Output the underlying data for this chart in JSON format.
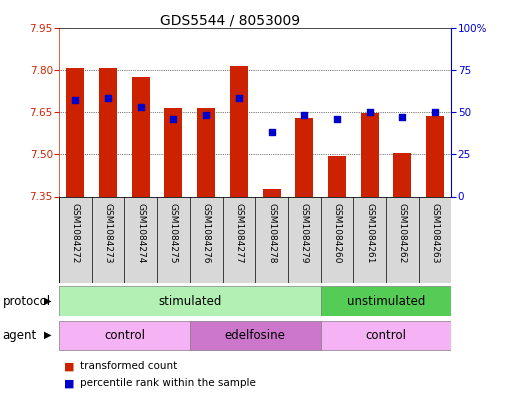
{
  "title": "GDS5544 / 8053009",
  "samples": [
    "GSM1084272",
    "GSM1084273",
    "GSM1084274",
    "GSM1084275",
    "GSM1084276",
    "GSM1084277",
    "GSM1084278",
    "GSM1084279",
    "GSM1084260",
    "GSM1084261",
    "GSM1084262",
    "GSM1084263"
  ],
  "red_values": [
    7.805,
    7.807,
    7.775,
    7.665,
    7.663,
    7.815,
    7.375,
    7.63,
    7.495,
    7.648,
    7.505,
    7.635
  ],
  "blue_values": [
    57,
    58,
    53,
    46,
    48,
    58,
    38,
    48,
    46,
    50,
    47,
    50
  ],
  "ylim_left": [
    7.35,
    7.95
  ],
  "ylim_right": [
    0,
    100
  ],
  "yticks_left": [
    7.35,
    7.5,
    7.65,
    7.8,
    7.95
  ],
  "yticks_right": [
    0,
    25,
    50,
    75,
    100
  ],
  "ytick_labels_right": [
    "0",
    "25",
    "50",
    "75",
    "100%"
  ],
  "bar_color": "#cc2200",
  "dot_color": "#0000cc",
  "bar_bottom": 7.35,
  "protocol_labels": [
    "stimulated",
    "unstimulated"
  ],
  "protocol_color_stim": "#b3f0b3",
  "protocol_color_unstim": "#55cc55",
  "agent_labels": [
    "control",
    "edelfosine",
    "control"
  ],
  "agent_color_control": "#f5b3f5",
  "agent_color_edelfosine": "#cc77cc",
  "legend_red_label": "transformed count",
  "legend_blue_label": "percentile rank within the sample",
  "background_color": "#ffffff",
  "title_fontsize": 10,
  "tick_fontsize": 7.5,
  "label_fontsize": 8.5,
  "xtick_bg_color": "#d8d8d8"
}
